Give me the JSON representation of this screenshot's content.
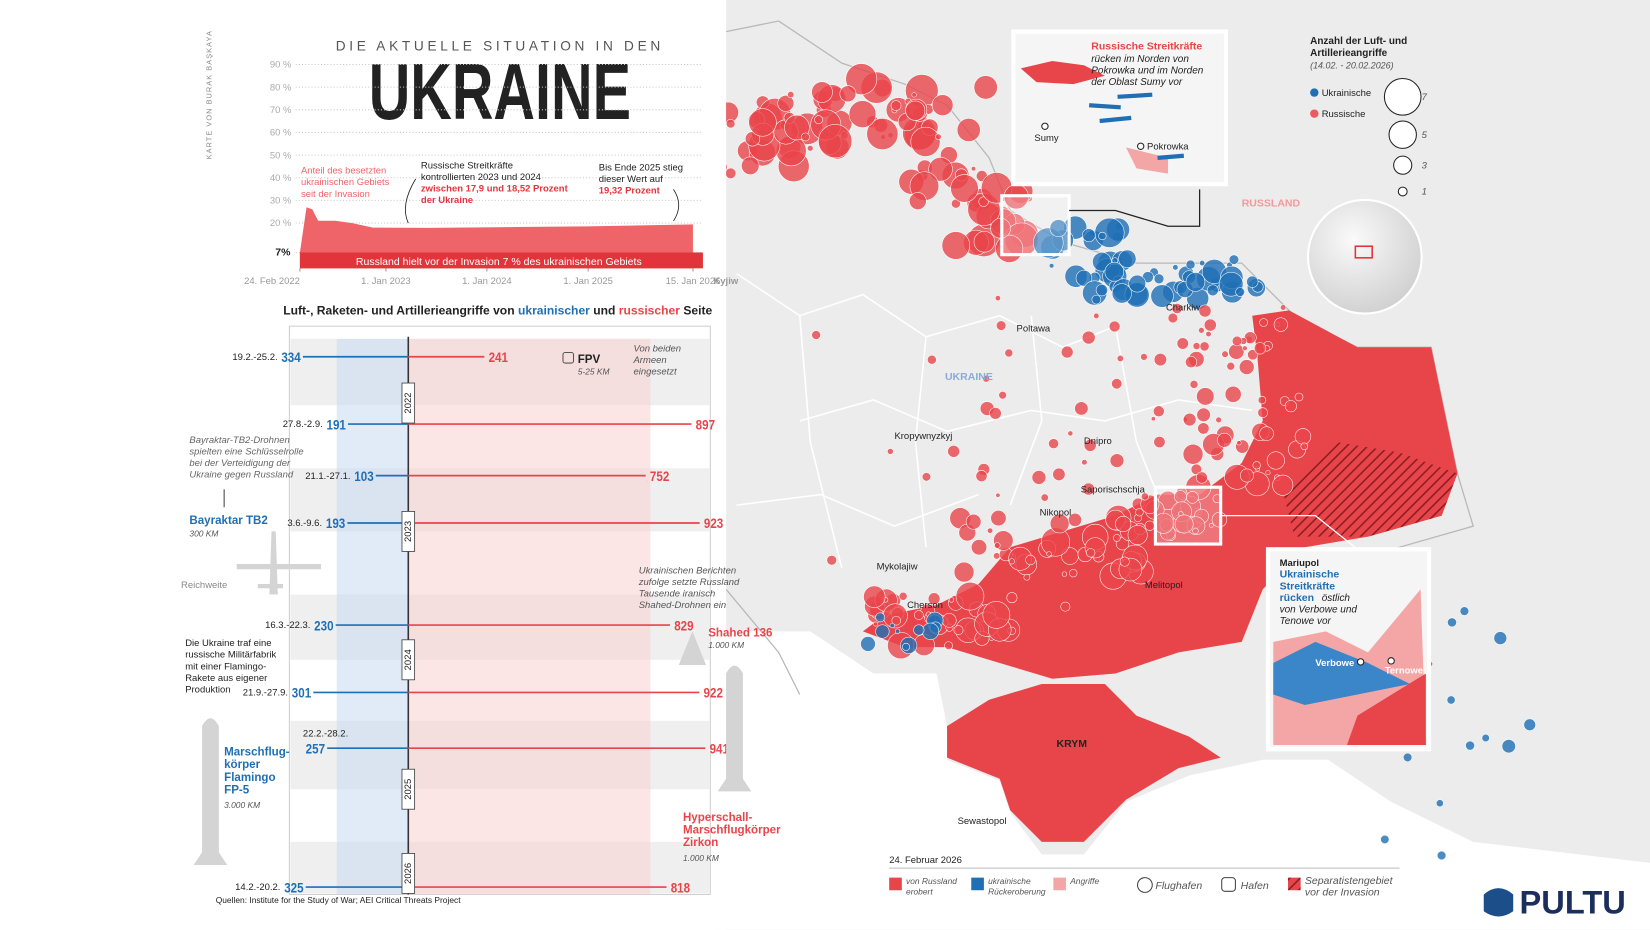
{
  "header": {
    "byline": "KARTE VON BURAK BAŞKAYA",
    "kicker": "DIE AKTUELLE SITUATION IN DEN",
    "title": "UKRAINE"
  },
  "chart_data": [
    {
      "type": "area",
      "color": "#ef6468",
      "base_color": "#e2353b",
      "x": [
        "2022-02-24",
        "2022-03-20",
        "2022-04-10",
        "2022-05-01",
        "2022-07-01",
        "2022-09-01",
        "2022-11-15",
        "2023-06-01",
        "2024-06-01",
        "2024-12-31",
        "2025-12-31",
        "2026-01-15"
      ],
      "values": [
        7,
        27,
        26,
        21,
        21,
        20,
        18,
        17.9,
        18.3,
        18.52,
        19.32,
        19.4
      ],
      "xlim": [
        "2022-02-24",
        "2026-02-20"
      ],
      "xticks": [
        {
          "value": "2022-02-24",
          "label": "24. Feb 2022"
        },
        {
          "value": "2023-01-01",
          "label": "1. Jan 2023"
        },
        {
          "value": "2024-01-01",
          "label": "1. Jan 2024"
        },
        {
          "value": "2025-01-01",
          "label": "1. Jan 2025"
        },
        {
          "value": "2026-01-15",
          "label": "15. Jan 2026"
        }
      ],
      "ylim": [
        0,
        92
      ],
      "yticks": [
        {
          "value": 7,
          "label": "7%"
        },
        {
          "value": 20,
          "label": "20 %"
        },
        {
          "value": 30,
          "label": "30 %"
        },
        {
          "value": 40,
          "label": "40 %"
        },
        {
          "value": 50,
          "label": "50 %"
        },
        {
          "value": 60,
          "label": "60 %"
        },
        {
          "value": 70,
          "label": "70 %"
        },
        {
          "value": 80,
          "label": "80 %"
        },
        {
          "value": 90,
          "label": "90 %"
        }
      ],
      "grid": true,
      "annotations": [
        {
          "lines": [
            "Anteil des besetzten",
            "ukrainischen Gebiets",
            "seit der Invasion"
          ]
        },
        {
          "lines": [
            "Russische Streitkräfte",
            "kontrollierten 2023 und 2024"
          ],
          "highlight": [
            "zwischen 17,9 und 18,52 Prozent",
            "der Ukraine"
          ]
        },
        {
          "lines": [
            "Bis Ende 2025 stieg",
            "dieser Wert auf"
          ],
          "highlight": [
            "19,32 Prozent"
          ]
        },
        {
          "lines": [
            "Russland hielt vor der Invasion 7 % des ukrainischen Gebiets"
          ]
        }
      ]
    },
    {
      "type": "diverging-bar",
      "title_parts": [
        "Luft-, Raketen- und Artillerieangriffe von ",
        " und ",
        " Seite"
      ],
      "categories": [
        "19.2.-25.2.",
        "27.8.-2.9.",
        "21.1.-27.1.",
        "3.6.-9.6.",
        "16.3.-22.3.",
        "21.9.-27.9.",
        "22.2.-28.2.",
        "14.2.-20.2."
      ],
      "series": [
        {
          "name": "ukrainischer",
          "color": "#1f6fb5",
          "values": [
            334,
            191,
            103,
            193,
            230,
            301,
            257,
            325
          ]
        },
        {
          "name": "russischer",
          "color": "#e8454b",
          "values": [
            241,
            897,
            752,
            923,
            829,
            922,
            941,
            818
          ]
        }
      ],
      "xlim": [
        0,
        1000
      ],
      "year_labels": [
        "2022",
        "2023",
        "2024",
        "2025",
        "2026"
      ]
    }
  ],
  "callouts": {
    "fpv": {
      "name": "FPV",
      "range": "5-25 KM",
      "note": [
        "Von beiden",
        "Armeen",
        "eingesetzt"
      ]
    },
    "tb2_note": [
      "Bayraktar-TB2-Drohnen",
      "spielten eine Schlüsselrolle",
      "bei der Verteidigung der",
      "Ukraine gegen Russland"
    ],
    "tb2": {
      "name": "Bayraktar TB2",
      "range": "300 KM",
      "caption": "Reichweite"
    },
    "shahed_note": [
      "Ukrainischen Berichten",
      "zufolge setzte Russland",
      "Tausende iranisch",
      "Shahed-Drohnen ein"
    ],
    "shahed": {
      "name": "Shahed 136",
      "range": "1.000 KM"
    },
    "flamingo_note": [
      "Die Ukraine traf eine",
      "russische Militärfabrik",
      "mit einer Flamingo-",
      "Rakete aus eigener",
      "Produktion"
    ],
    "flamingo": {
      "name": [
        "Marschflug-",
        "körper",
        "Flamingo",
        "FP-5"
      ],
      "range": "3.000 KM"
    },
    "zirkon": {
      "name": [
        "Hyperschall-",
        "Marschflugkörper",
        "Zirkon"
      ],
      "range": "1.000 KM"
    }
  },
  "map": {
    "regions": {
      "ukraine": "UKRAINE",
      "russia": "RUSSLAND",
      "crimea": "KRYM"
    },
    "cities": [
      "Kyjiw",
      "Charkiw",
      "Poltawa",
      "Kropywnyzkyj",
      "Dnipro",
      "Saporischschja",
      "Nikopol",
      "Mykolajiw",
      "Cherson",
      "Melitopol",
      "Sewastopol"
    ],
    "inset_north": {
      "title": "Russische Streitkräfte",
      "lines": [
        "rücken im Norden von",
        "Pokrowka und im Norden",
        "der Oblast Sumy vor"
      ],
      "places": [
        "Sumy",
        "Pokrowka"
      ]
    },
    "inset_south": {
      "place": "Mariupol",
      "highlight": [
        "Ukrainische",
        "Streitkräfte",
        "rücken"
      ],
      "lines": [
        "östlich",
        "von Verbowe und",
        "Tenowe vor"
      ],
      "places": [
        "Verbowe",
        "Ternowe"
      ]
    },
    "legend": {
      "title": [
        "Anzahl der Luft- und",
        "Artillerieangriffe"
      ],
      "period": "(14.02. - 20.02.2026)",
      "sides": [
        {
          "name": "Ukrainische",
          "color": "#1f6fb5"
        },
        {
          "name": "Russische",
          "color": "#ee5a5e"
        }
      ],
      "sizes": [
        7,
        5,
        3,
        1
      ]
    },
    "key": {
      "date": "24. Februar 2026",
      "items": [
        {
          "label": [
            "von Russland",
            "erobert"
          ],
          "color": "#e8454b"
        },
        {
          "label": [
            "ukrainische",
            "Rückeroberung"
          ],
          "color": "#1f6fb5"
        },
        {
          "label": [
            "Angriffe"
          ],
          "color": "#f4a6a6"
        }
      ],
      "airport": "Flughafen",
      "port": "Hafen",
      "separatist": [
        "Separatistengebiet",
        "vor der Invasion"
      ]
    }
  },
  "footer": {
    "source": "Quellen: Institute for the Study of War; AEI Critical Threats Project",
    "logo": "PULTU"
  }
}
